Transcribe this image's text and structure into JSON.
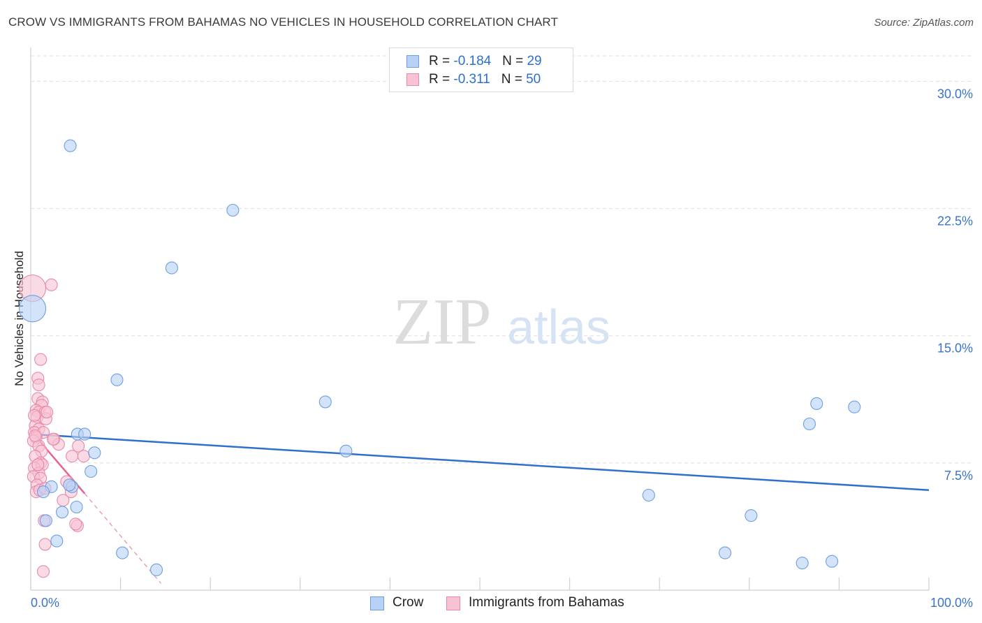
{
  "title": "CROW VS IMMIGRANTS FROM BAHAMAS NO VEHICLES IN HOUSEHOLD CORRELATION CHART",
  "source": "Source: ZipAtlas.com",
  "watermark": {
    "zip": "ZIP",
    "atlas": "atlas"
  },
  "legend_top": {
    "rows": [
      {
        "r_label": "R = ",
        "r_value": "-0.184",
        "n_label": "N = ",
        "n_value": "29"
      },
      {
        "r_label": "R = ",
        "r_value": "-0.311",
        "n_label": "N = ",
        "n_value": "50"
      }
    ]
  },
  "legend_bottom": [
    "Crow",
    "Immigrants from Bahamas"
  ],
  "colors": {
    "crow_fill": "#b8d2f5",
    "crow_stroke": "#6e9fe0",
    "crow_line": "#2f6fd0",
    "bah_fill": "#f7c3d4",
    "bah_stroke": "#e889a8",
    "bah_line": "#e8638e",
    "tick_label": "#3a74c9",
    "grid": "#dedede"
  },
  "chart_data": {
    "type": "scatter",
    "title": "CROW VS IMMIGRANTS FROM BAHAMAS NO VEHICLES IN HOUSEHOLD CORRELATION CHART",
    "xlabel": "",
    "ylabel": "No Vehicles in Household",
    "xlim": [
      0,
      100
    ],
    "ylim": [
      0,
      31.5
    ],
    "x_tick_labels": [
      "0.0%",
      "100.0%"
    ],
    "y_ticks": [
      7.5,
      15.0,
      22.5,
      30.0
    ],
    "y_tick_labels": [
      "7.5%",
      "15.0%",
      "22.5%",
      "30.0%"
    ],
    "grid": true,
    "series": [
      {
        "name": "Crow",
        "R": -0.184,
        "N": 29,
        "trend": {
          "x": [
            0,
            100
          ],
          "y": [
            9.2,
            5.9
          ]
        },
        "points": [
          {
            "x": 0.2,
            "y": 16.6,
            "big": true
          },
          {
            "x": 4.4,
            "y": 26.2
          },
          {
            "x": 22.5,
            "y": 22.4
          },
          {
            "x": 15.7,
            "y": 19.0
          },
          {
            "x": 9.6,
            "y": 12.4
          },
          {
            "x": 5.2,
            "y": 9.2
          },
          {
            "x": 6.0,
            "y": 9.2
          },
          {
            "x": 7.1,
            "y": 8.1
          },
          {
            "x": 6.7,
            "y": 7.0
          },
          {
            "x": 4.6,
            "y": 6.1
          },
          {
            "x": 2.3,
            "y": 6.1
          },
          {
            "x": 1.4,
            "y": 5.8
          },
          {
            "x": 5.1,
            "y": 4.9
          },
          {
            "x": 3.5,
            "y": 4.6
          },
          {
            "x": 1.7,
            "y": 4.1
          },
          {
            "x": 2.9,
            "y": 2.9
          },
          {
            "x": 10.2,
            "y": 2.2
          },
          {
            "x": 14.0,
            "y": 1.2
          },
          {
            "x": 32.8,
            "y": 11.1
          },
          {
            "x": 35.1,
            "y": 8.2
          },
          {
            "x": 68.8,
            "y": 5.6
          },
          {
            "x": 80.2,
            "y": 4.4
          },
          {
            "x": 77.3,
            "y": 2.2
          },
          {
            "x": 86.7,
            "y": 9.8
          },
          {
            "x": 87.5,
            "y": 11.0
          },
          {
            "x": 91.7,
            "y": 10.8
          },
          {
            "x": 85.9,
            "y": 1.6
          },
          {
            "x": 89.2,
            "y": 1.7
          },
          {
            "x": 4.3,
            "y": 6.2
          }
        ]
      },
      {
        "name": "Immigrants from Bahamas",
        "R": -0.311,
        "N": 50,
        "trend": {
          "x": [
            0,
            6.0
          ],
          "y": [
            9.4,
            5.7
          ]
        },
        "trend_dashed": {
          "x": [
            6.0,
            14.5
          ],
          "y": [
            5.7,
            0.4
          ]
        },
        "points": [
          {
            "x": 0.2,
            "y": 17.8,
            "big": true
          },
          {
            "x": 2.3,
            "y": 18.0
          },
          {
            "x": 1.1,
            "y": 13.6
          },
          {
            "x": 0.8,
            "y": 12.5
          },
          {
            "x": 0.9,
            "y": 12.1
          },
          {
            "x": 0.8,
            "y": 11.3
          },
          {
            "x": 1.3,
            "y": 11.1
          },
          {
            "x": 1.2,
            "y": 10.9
          },
          {
            "x": 0.6,
            "y": 10.6
          },
          {
            "x": 0.9,
            "y": 10.5
          },
          {
            "x": 1.6,
            "y": 10.5
          },
          {
            "x": 0.7,
            "y": 10.2
          },
          {
            "x": 1.7,
            "y": 10.1
          },
          {
            "x": 0.5,
            "y": 9.7
          },
          {
            "x": 0.9,
            "y": 9.5
          },
          {
            "x": 0.4,
            "y": 9.3
          },
          {
            "x": 1.4,
            "y": 9.3
          },
          {
            "x": 0.6,
            "y": 9.0
          },
          {
            "x": 0.3,
            "y": 8.8
          },
          {
            "x": 2.6,
            "y": 8.9
          },
          {
            "x": 3.1,
            "y": 8.6
          },
          {
            "x": 0.9,
            "y": 8.5
          },
          {
            "x": 5.3,
            "y": 8.5
          },
          {
            "x": 1.2,
            "y": 8.2
          },
          {
            "x": 0.5,
            "y": 7.9
          },
          {
            "x": 4.6,
            "y": 7.9
          },
          {
            "x": 5.9,
            "y": 7.9
          },
          {
            "x": 1.1,
            "y": 7.5
          },
          {
            "x": 1.3,
            "y": 7.4
          },
          {
            "x": 0.4,
            "y": 7.2
          },
          {
            "x": 0.9,
            "y": 6.9
          },
          {
            "x": 0.3,
            "y": 6.7
          },
          {
            "x": 1.1,
            "y": 6.6
          },
          {
            "x": 4.0,
            "y": 6.4
          },
          {
            "x": 0.7,
            "y": 6.2
          },
          {
            "x": 0.6,
            "y": 5.8
          },
          {
            "x": 1.0,
            "y": 5.9
          },
          {
            "x": 1.6,
            "y": 6.0
          },
          {
            "x": 4.5,
            "y": 5.8
          },
          {
            "x": 3.6,
            "y": 5.3
          },
          {
            "x": 1.5,
            "y": 4.1
          },
          {
            "x": 5.2,
            "y": 3.8
          },
          {
            "x": 5.0,
            "y": 3.9
          },
          {
            "x": 1.6,
            "y": 2.7
          },
          {
            "x": 1.4,
            "y": 1.1
          },
          {
            "x": 0.5,
            "y": 9.1
          },
          {
            "x": 2.5,
            "y": 8.9
          },
          {
            "x": 0.8,
            "y": 7.4
          },
          {
            "x": 1.8,
            "y": 10.5
          },
          {
            "x": 0.4,
            "y": 10.3
          }
        ]
      }
    ]
  }
}
